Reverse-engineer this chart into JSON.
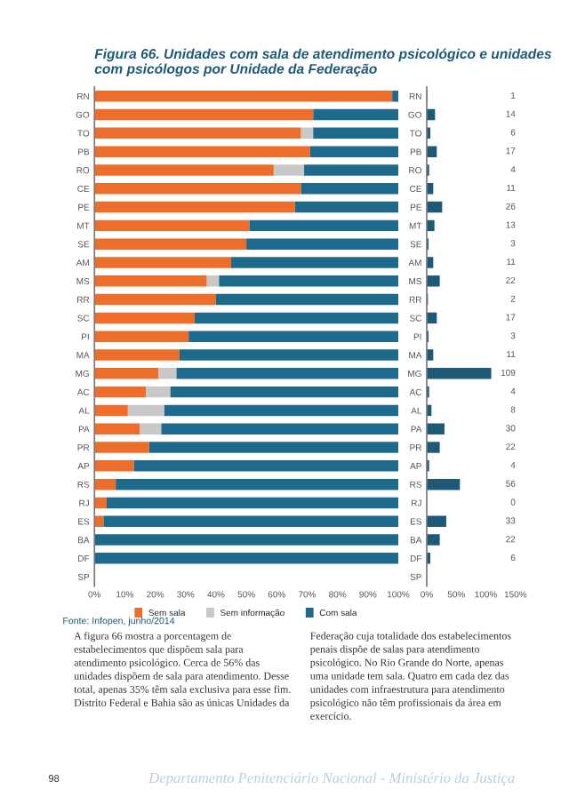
{
  "chart_data": [
    {
      "type": "bar",
      "orientation": "horizontal",
      "stacked": true,
      "title": "Figura 66. Unidades com sala de atendimento psicológico e unidades com psicólogos por Unidade da Federação",
      "categories": [
        "RN",
        "GO",
        "TO",
        "PB",
        "RO",
        "CE",
        "PE",
        "MT",
        "SE",
        "AM",
        "MS",
        "RR",
        "SC",
        "PI",
        "MA",
        "MG",
        "AC",
        "AL",
        "PA",
        "PR",
        "AP",
        "RS",
        "RJ",
        "ES",
        "BA",
        "DF",
        "SP"
      ],
      "series": [
        {
          "name": "Sem sala",
          "color": "#ec6e2a",
          "values": [
            98,
            72,
            68,
            71,
            59,
            68,
            66,
            51,
            50,
            45,
            37,
            40,
            33,
            31,
            28,
            21,
            17,
            11,
            15,
            18,
            13,
            7,
            4,
            3,
            0,
            0,
            null
          ]
        },
        {
          "name": "Sem informação",
          "color": "#c8c8c8",
          "values": [
            0,
            0,
            4,
            0,
            10,
            0,
            0,
            0,
            0,
            0,
            4,
            0,
            0,
            0,
            0,
            6,
            8,
            12,
            7,
            0,
            0,
            0,
            0,
            0,
            0,
            0,
            null
          ]
        },
        {
          "name": "Com sala",
          "color": "#1e6a8c",
          "values": [
            2,
            28,
            28,
            29,
            31,
            32,
            34,
            49,
            50,
            55,
            59,
            60,
            67,
            69,
            72,
            73,
            75,
            77,
            78,
            82,
            87,
            93,
            96,
            97,
            100,
            100,
            null
          ]
        }
      ],
      "xlim": [
        0,
        100
      ],
      "xticks": [
        {
          "value": 0,
          "label": "0%"
        },
        {
          "value": 10,
          "label": "10%"
        },
        {
          "value": 20,
          "label": "20%"
        },
        {
          "value": 30,
          "label": "30%"
        },
        {
          "value": 40,
          "label": "40%"
        },
        {
          "value": 50,
          "label": "50%"
        },
        {
          "value": 60,
          "label": "60%"
        },
        {
          "value": 70,
          "label": "70%"
        },
        {
          "value": 80,
          "label": "80%"
        },
        {
          "value": 90,
          "label": "90%"
        },
        {
          "value": 100,
          "label": "100%"
        }
      ],
      "legend": "bottom",
      "annotations": [
        "Fonte: Infopen, junho/2014",
        "A figura 66 mostra a porcentagem de estabelecimentos que dispõem sala para atendimento psicológico. Cerca de 56% das unidades dispõem de sala para atendimento. Desse total, apenas 35% têm sala exclusiva para esse fim. Distrito Federal e Bahia são as únicas Unidades da",
        "Federação cuja totalidade dos estabelecimentos penais dispõe de salas para atendimento psicológico. No Rio Grande do Norte, apenas uma unidade tem sala. Quatro em cada dez das unidades com infraestrutura para atendimento psicológico não têm profissionais da área em exercício.",
        "98",
        "Departamento Penitenciário Nacional - Ministério da Justiça"
      ]
    },
    {
      "type": "bar",
      "orientation": "horizontal",
      "categories": [
        "RN",
        "GO",
        "TO",
        "PB",
        "RO",
        "CE",
        "PE",
        "MT",
        "SE",
        "AM",
        "MS",
        "RR",
        "SC",
        "PI",
        "MA",
        "MG",
        "AC",
        "AL",
        "PA",
        "PR",
        "AP",
        "RS",
        "RJ",
        "ES",
        "BA",
        "DF",
        "SP"
      ],
      "series": [
        {
          "color": "#1e5a78",
          "values": [
            1,
            14,
            6,
            17,
            4,
            11,
            26,
            13,
            3,
            11,
            22,
            2,
            17,
            3,
            11,
            109,
            4,
            8,
            30,
            22,
            4,
            56,
            0,
            33,
            22,
            6,
            null
          ]
        }
      ],
      "data_labels": true,
      "xlim": [
        0,
        150
      ],
      "xticks": [
        {
          "value": 0,
          "label": "0%"
        },
        {
          "value": 50,
          "label": "50%"
        },
        {
          "value": 100,
          "label": "100%"
        },
        {
          "value": 150,
          "label": "150%"
        }
      ]
    }
  ]
}
